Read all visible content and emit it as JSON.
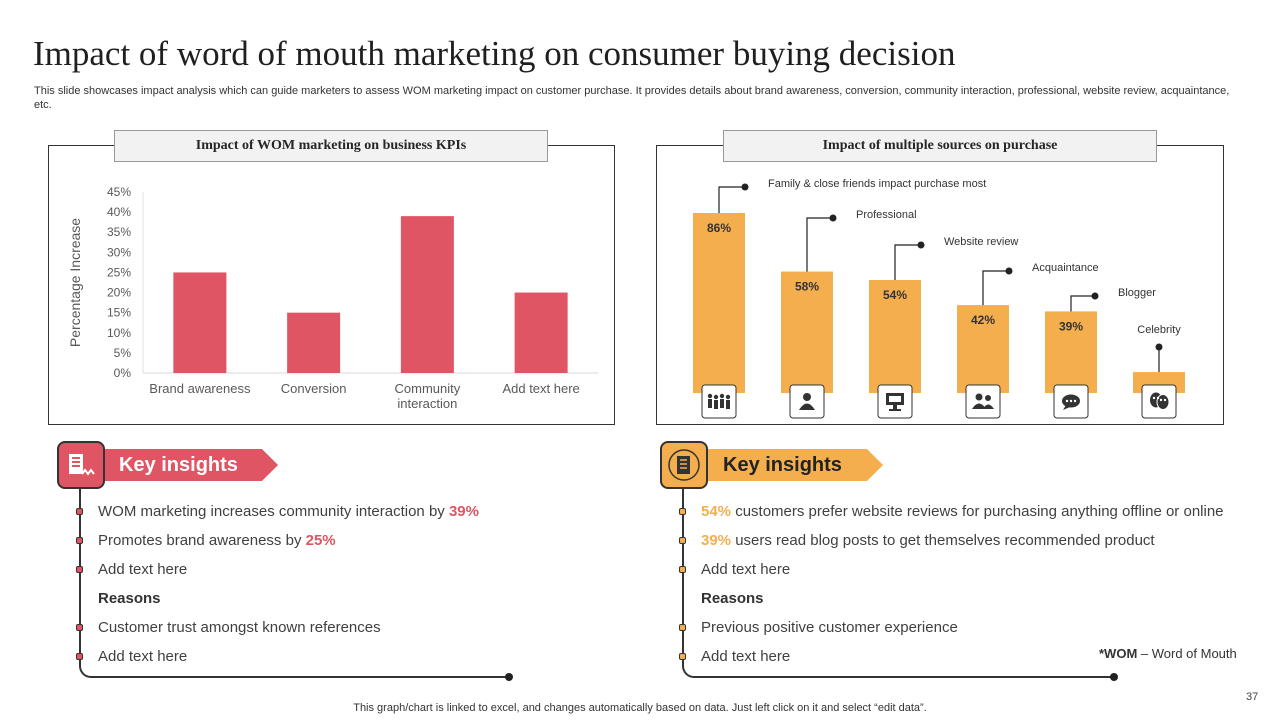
{
  "title": "Impact of word of mouth marketing on consumer buying decision",
  "subtitle": "This slide showcases impact analysis which can guide marketers to assess WOM marketing impact on customer purchase. It provides details about brand awareness, conversion, community interaction, professional, website review, acquaintance, etc.",
  "left_panel": {
    "title": "Impact of WOM marketing on business KPIs"
  },
  "right_panel": {
    "title": "Impact of multiple sources on purchase"
  },
  "chart_data": [
    {
      "type": "bar",
      "title": "Impact of WOM marketing on business KPIs",
      "categories": [
        "Brand awareness",
        "Conversion",
        "Community interaction",
        "Add text here"
      ],
      "category_lines": [
        [
          "Brand awareness"
        ],
        [
          "Conversion"
        ],
        [
          "Community",
          "interaction"
        ],
        [
          "Add text here"
        ]
      ],
      "values": [
        25,
        15,
        39,
        20
      ],
      "ylabel": "Percentage Increase",
      "xlabel": "",
      "ylim": [
        0,
        45
      ],
      "yticks": [
        0,
        5,
        10,
        15,
        20,
        25,
        30,
        35,
        40,
        45
      ],
      "ytick_labels": [
        "0%",
        "5%",
        "10%",
        "15%",
        "20%",
        "25%",
        "30%",
        "35%",
        "40%",
        "45%"
      ],
      "color": "#e05563",
      "grid": false
    },
    {
      "type": "bar",
      "title": "Impact of multiple sources on purchase",
      "categories": [
        "Family & close friends impact purchase most",
        "Professional",
        "Website review",
        "Acquaintance",
        "Blogger",
        "Celebrity"
      ],
      "values": [
        86,
        58,
        54,
        42,
        39,
        10
      ],
      "data_labels": [
        "86%",
        "58%",
        "54%",
        "42%",
        "39%",
        ""
      ],
      "icons": [
        "family-icon",
        "professional-icon",
        "website-review-icon",
        "acquaintance-icon",
        "blogger-icon",
        "celebrity-icon"
      ],
      "ylim": [
        0,
        100
      ],
      "color": "#f5ae4e",
      "grid": false
    }
  ],
  "insights_left": {
    "heading": "Key insights",
    "accent": "#e05563",
    "items": [
      {
        "text": "WOM marketing increases community interaction by ",
        "highlight": "39%"
      },
      {
        "text": "Promotes brand awareness by ",
        "highlight": "25%"
      },
      {
        "text": "Add text here"
      }
    ],
    "reasons_label": "Reasons",
    "reasons": [
      "Customer trust amongst known references",
      "Add text here"
    ]
  },
  "insights_right": {
    "heading": "Key insights",
    "accent": "#f5ae4e",
    "items": [
      {
        "highlight": "54%",
        "text": " customers prefer website reviews for purchasing anything offline or online"
      },
      {
        "highlight": "39%",
        "text": " users read blog posts to get themselves recommended product"
      },
      {
        "text": "Add text here"
      }
    ],
    "reasons_label": "Reasons",
    "reasons": [
      "Previous positive customer experience",
      "Add text here"
    ]
  },
  "footnote": {
    "abbr": "*WOM",
    "meaning": " – Word of Mouth"
  },
  "bottom_note": "This graph/chart is linked to excel,  and changes automatically based on data. Just left click on it and select “edit data”.",
  "page_number": "37"
}
